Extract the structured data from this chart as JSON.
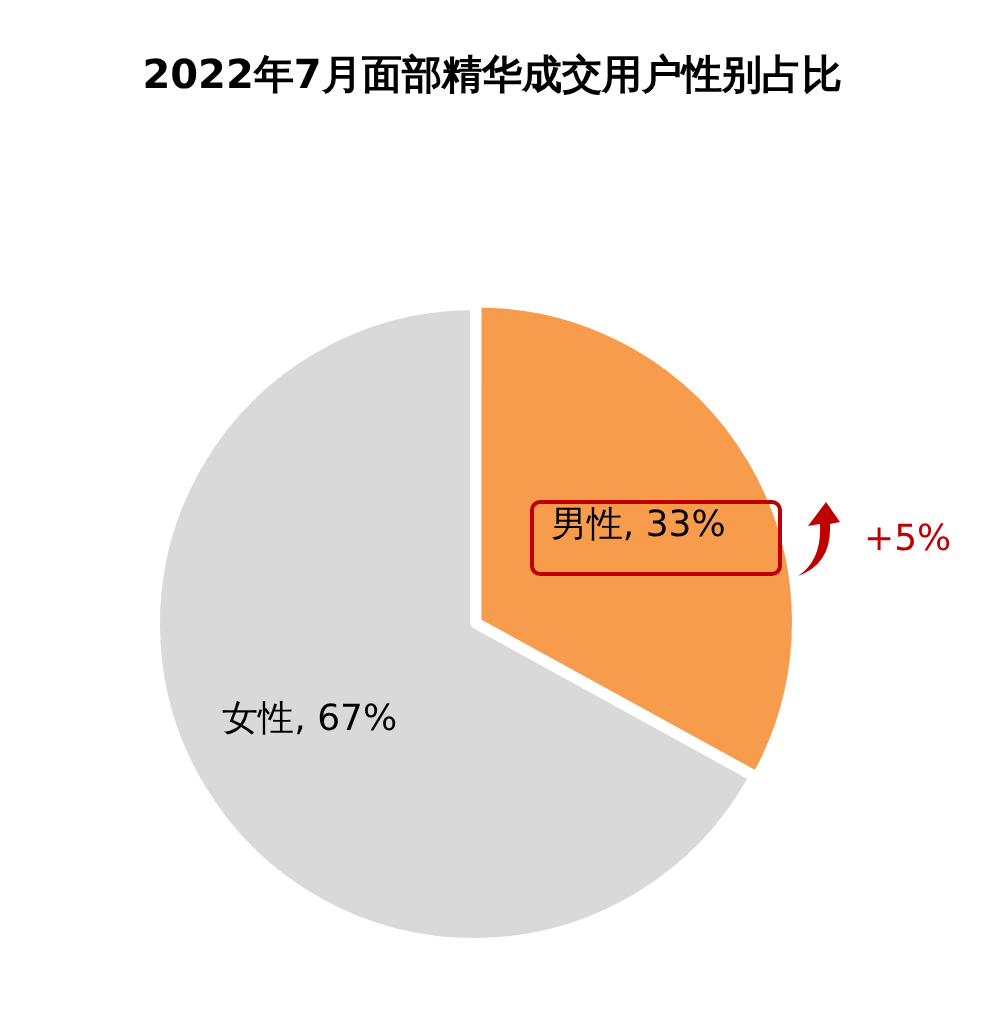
{
  "chart_data": {
    "type": "pie",
    "title": "2022年7月面部精华成交用户性别占比",
    "categories": [
      "男性",
      "女性"
    ],
    "values": [
      33,
      67
    ],
    "colors": [
      "#f79b4c",
      "#d9d9d9"
    ],
    "value_labels": [
      ", 33%",
      ", 67%"
    ],
    "legend": false,
    "annotations": [
      "+5%"
    ]
  }
}
